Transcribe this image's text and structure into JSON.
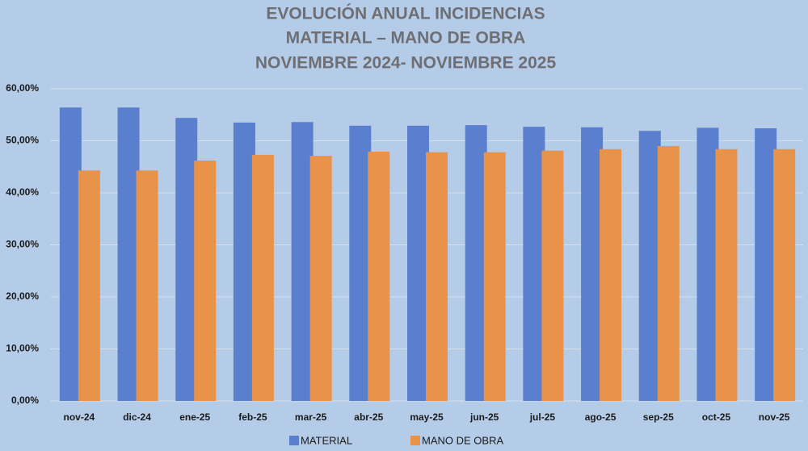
{
  "chart_data": {
    "type": "bar",
    "title": [
      "EVOLUCIÓN ANUAL INCIDENCIAS",
      "MATERIAL – MANO DE OBRA",
      "NOVIEMBRE 2024- NOVIEMBRE 2025"
    ],
    "categories": [
      "nov-24",
      "dic-24",
      "ene-25",
      "feb-25",
      "mar-25",
      "abr-25",
      "may-25",
      "jun-25",
      "jul-25",
      "ago-25",
      "sep-25",
      "oct-25",
      "nov-25"
    ],
    "series": [
      {
        "name": "MATERIAL",
        "color": "#5b7fcf",
        "values": [
          56.4,
          56.4,
          54.4,
          53.5,
          53.6,
          52.9,
          52.9,
          53.0,
          52.7,
          52.6,
          51.9,
          52.5,
          52.4
        ]
      },
      {
        "name": "MANO DE OBRA",
        "color": "#e8924a",
        "values": [
          44.3,
          44.3,
          46.2,
          47.3,
          47.1,
          47.9,
          47.8,
          47.8,
          48.1,
          48.4,
          49.0,
          48.4,
          48.4
        ]
      }
    ],
    "ylim": [
      0,
      60
    ],
    "yticks": [
      {
        "value": 0,
        "label": "0,00%"
      },
      {
        "value": 10,
        "label": "10,00%"
      },
      {
        "value": 20,
        "label": "20,00%"
      },
      {
        "value": 30,
        "label": "30,00%"
      },
      {
        "value": 40,
        "label": "40,00%"
      },
      {
        "value": 50,
        "label": "50,00%"
      },
      {
        "value": 60,
        "label": "60,00%"
      }
    ],
    "grid": true,
    "legend": "bottom"
  }
}
